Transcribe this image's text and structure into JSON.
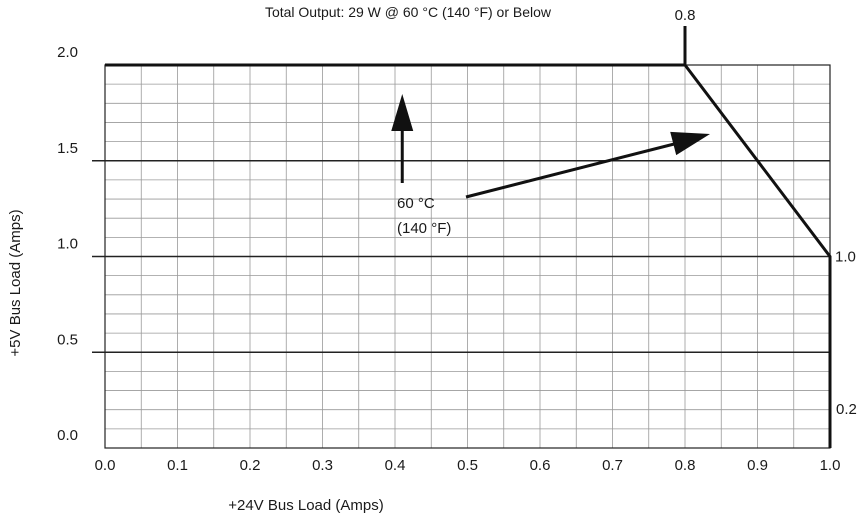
{
  "chart_data": {
    "type": "line",
    "title": "Total Output: 29 W @ 60 °C (140 °F) or Below",
    "xlabel": "+24V Bus Load (Amps)",
    "ylabel": "+5V Bus Load (Amps)",
    "xlim": [
      0.0,
      1.0
    ],
    "ylim": [
      0.0,
      2.0
    ],
    "x_ticks": [
      "0.0",
      "0.1",
      "0.2",
      "0.3",
      "0.4",
      "0.5",
      "0.6",
      "0.7",
      "0.8",
      "0.9",
      "1.0"
    ],
    "y_ticks": [
      "0.0",
      "0.5",
      "1.0",
      "1.5",
      "2.0"
    ],
    "grid": true,
    "series": [
      {
        "x": [
          0.0,
          0.8,
          1.0,
          1.0
        ],
        "y": [
          2.0,
          2.0,
          1.0,
          0.0
        ]
      }
    ],
    "annotations": {
      "top_marker": "0.8",
      "right_upper": "1.0",
      "right_lower": "0.2",
      "temp_line1": "60 °C",
      "temp_line2": "(140 °F)"
    }
  }
}
